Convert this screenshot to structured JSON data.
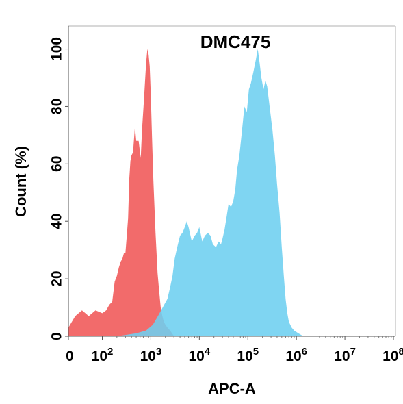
{
  "chart_data": {
    "type": "area",
    "title": "DMC475",
    "xlabel": "APC-A",
    "ylabel": "Count  (%)",
    "x_scale": "biexponential",
    "xlim": [
      0,
      100000000
    ],
    "ylim": [
      0,
      108
    ],
    "x_ticks": [
      {
        "base": "0",
        "exp": ""
      },
      {
        "base": "10",
        "exp": "2"
      },
      {
        "base": "10",
        "exp": "3"
      },
      {
        "base": "10",
        "exp": "4"
      },
      {
        "base": "10",
        "exp": "5"
      },
      {
        "base": "10",
        "exp": "6"
      },
      {
        "base": "10",
        "exp": "7"
      },
      {
        "base": "10",
        "exp": "8"
      }
    ],
    "y_ticks": [
      "0",
      "20",
      "40",
      "60",
      "80",
      "100"
    ],
    "grid": false,
    "legend": "none",
    "series": [
      {
        "color": "#f26b6b",
        "points": [
          [
            0,
            3
          ],
          [
            20,
            7
          ],
          [
            40,
            9
          ],
          [
            60,
            7
          ],
          [
            80,
            9
          ],
          [
            100,
            8
          ],
          [
            120,
            9
          ],
          [
            140,
            11
          ],
          [
            160,
            12
          ],
          [
            180,
            19
          ],
          [
            200,
            21
          ],
          [
            220,
            24
          ],
          [
            240,
            26
          ],
          [
            260,
            27
          ],
          [
            280,
            29
          ],
          [
            300,
            29
          ],
          [
            320,
            35
          ],
          [
            340,
            41
          ],
          [
            360,
            55
          ],
          [
            380,
            61
          ],
          [
            400,
            63
          ],
          [
            430,
            64
          ],
          [
            470,
            73
          ],
          [
            500,
            68
          ],
          [
            560,
            68
          ],
          [
            620,
            62
          ],
          [
            660,
            72
          ],
          [
            720,
            82
          ],
          [
            800,
            95
          ],
          [
            850,
            100
          ],
          [
            900,
            98
          ],
          [
            950,
            94
          ],
          [
            1000,
            84
          ],
          [
            1060,
            69
          ],
          [
            1130,
            54
          ],
          [
            1250,
            36
          ],
          [
            1380,
            22
          ],
          [
            1480,
            16
          ],
          [
            1600,
            10
          ],
          [
            1730,
            7
          ],
          [
            1850,
            5
          ],
          [
            2000,
            4
          ],
          [
            2200,
            3
          ],
          [
            2500,
            2
          ],
          [
            3000,
            0
          ]
        ]
      },
      {
        "color": "#6dcff0",
        "points": [
          [
            0,
            0
          ],
          [
            200,
            0
          ],
          [
            500,
            1
          ],
          [
            800,
            2
          ],
          [
            1100,
            4
          ],
          [
            1400,
            7
          ],
          [
            1750,
            10
          ],
          [
            2200,
            13
          ],
          [
            2500,
            17
          ],
          [
            2800,
            21
          ],
          [
            3100,
            27
          ],
          [
            3500,
            31
          ],
          [
            4000,
            35
          ],
          [
            4500,
            36
          ],
          [
            5000,
            38
          ],
          [
            5500,
            40
          ],
          [
            6000,
            38
          ],
          [
            7000,
            33
          ],
          [
            8000,
            35
          ],
          [
            9000,
            36
          ],
          [
            10000,
            38
          ],
          [
            11500,
            33
          ],
          [
            13000,
            35
          ],
          [
            15000,
            36
          ],
          [
            17000,
            35
          ],
          [
            19000,
            32
          ],
          [
            22000,
            31
          ],
          [
            25000,
            33
          ],
          [
            28000,
            32
          ],
          [
            30000,
            34
          ],
          [
            33000,
            37
          ],
          [
            36000,
            41
          ],
          [
            40000,
            46
          ],
          [
            45000,
            45
          ],
          [
            50000,
            47
          ],
          [
            55000,
            51
          ],
          [
            60000,
            58
          ],
          [
            67000,
            63
          ],
          [
            75000,
            71
          ],
          [
            85000,
            80
          ],
          [
            95000,
            78
          ],
          [
            105000,
            86
          ],
          [
            115000,
            88
          ],
          [
            130000,
            92
          ],
          [
            145000,
            96
          ],
          [
            160000,
            100
          ],
          [
            175000,
            95
          ],
          [
            190000,
            90
          ],
          [
            210000,
            86
          ],
          [
            230000,
            89
          ],
          [
            250000,
            87
          ],
          [
            280000,
            80
          ],
          [
            320000,
            72
          ],
          [
            360000,
            63
          ],
          [
            400000,
            53
          ],
          [
            450000,
            43
          ],
          [
            500000,
            31
          ],
          [
            550000,
            21
          ],
          [
            600000,
            13
          ],
          [
            650000,
            8
          ],
          [
            700000,
            5
          ],
          [
            800000,
            3
          ],
          [
            900000,
            2
          ],
          [
            1100000,
            1
          ],
          [
            1400000,
            0
          ]
        ]
      }
    ]
  }
}
